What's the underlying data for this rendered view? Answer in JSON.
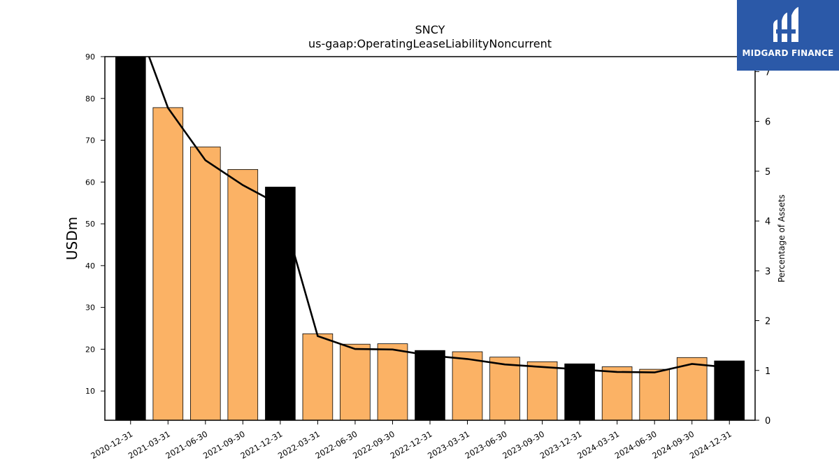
{
  "chart_data": {
    "type": "bar",
    "title": "SNCY",
    "subtitle": "us-gaap:OperatingLeaseLiabilityNoncurrent",
    "ylabel": "USDm",
    "y2label": "Percentage of Assets",
    "ylim": [
      3,
      90
    ],
    "y2lim": [
      0,
      7.3
    ],
    "yticks": [
      10,
      20,
      30,
      40,
      50,
      60,
      70,
      80,
      90
    ],
    "y2ticks": [
      0,
      1,
      2,
      3,
      4,
      5,
      6,
      7
    ],
    "categories": [
      "2020-12-31",
      "2021-03-31",
      "2021-06-30",
      "2021-09-30",
      "2021-12-31",
      "2022-03-31",
      "2022-06-30",
      "2022-09-30",
      "2022-12-31",
      "2023-03-31",
      "2023-06-30",
      "2023-09-30",
      "2023-12-31",
      "2024-03-31",
      "2024-06-30",
      "2024-09-30",
      "2024-12-31"
    ],
    "series": [
      {
        "kind": "bar",
        "values": [
          90.0,
          77.8,
          68.4,
          63.0,
          58.8,
          23.7,
          21.2,
          21.3,
          19.7,
          19.4,
          18.1,
          17.0,
          16.5,
          15.8,
          15.2,
          18.0,
          17.2
        ],
        "colors": [
          "#000000",
          "#fbb265",
          "#fbb265",
          "#fbb265",
          "#000000",
          "#fbb265",
          "#fbb265",
          "#fbb265",
          "#000000",
          "#fbb265",
          "#fbb265",
          "#fbb265",
          "#000000",
          "#fbb265",
          "#fbb265",
          "#fbb265",
          "#000000"
        ]
      },
      {
        "kind": "line",
        "axis": "right",
        "color": "#000000",
        "values": [
          8.3,
          6.27,
          5.22,
          4.72,
          4.32,
          1.69,
          1.43,
          1.42,
          1.3,
          1.23,
          1.12,
          1.07,
          1.02,
          0.97,
          0.96,
          1.13,
          1.06
        ]
      }
    ],
    "grid": false,
    "legend": "none"
  },
  "logo": {
    "text": "MIDGARD FINANCE",
    "background": "#2b59a8",
    "icon": "midgard-m-icon"
  }
}
